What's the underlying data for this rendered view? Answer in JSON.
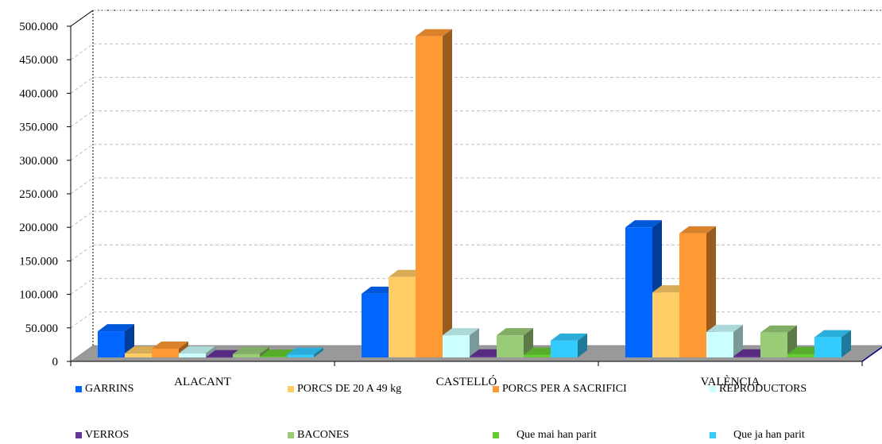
{
  "chart_data": {
    "type": "bar",
    "categories": [
      "ALACANT",
      "CASTELLÓ",
      "VALÈNCIA"
    ],
    "series": [
      {
        "name": "GARRINS",
        "color": "#0066ff",
        "values": [
          39000,
          95000,
          194000
        ]
      },
      {
        "name": "PORCS DE 20 A 49 kg",
        "color": "#ffcc66",
        "values": [
          6000,
          120000,
          97000
        ]
      },
      {
        "name": "PORCS PER A SACRIFICI",
        "color": "#ff9933",
        "values": [
          13000,
          479000,
          185000
        ]
      },
      {
        "name": "REPRODUCTORS",
        "color": "#ccffff",
        "values": [
          6000,
          33000,
          38000
        ]
      },
      {
        "name": "VERROS",
        "color": "#663399",
        "values": [
          300,
          1500,
          1500
        ]
      },
      {
        "name": "BACONES",
        "color": "#99cc77",
        "values": [
          5000,
          33000,
          37000
        ]
      },
      {
        "name": "Que mai han parit",
        "color": "#66cc33",
        "values": [
          1000,
          4000,
          5000
        ]
      },
      {
        "name": "Que ja han parit",
        "color": "#33ccff",
        "values": [
          4000,
          25000,
          30000
        ]
      }
    ],
    "y_ticks": [
      "0",
      "50.000",
      "100.000",
      "150.000",
      "200.000",
      "250.000",
      "300.000",
      "350.000",
      "400.000",
      "450.000",
      "500.000"
    ],
    "ylim": [
      0,
      500000
    ],
    "grid": true,
    "legend_position": "bottom"
  }
}
